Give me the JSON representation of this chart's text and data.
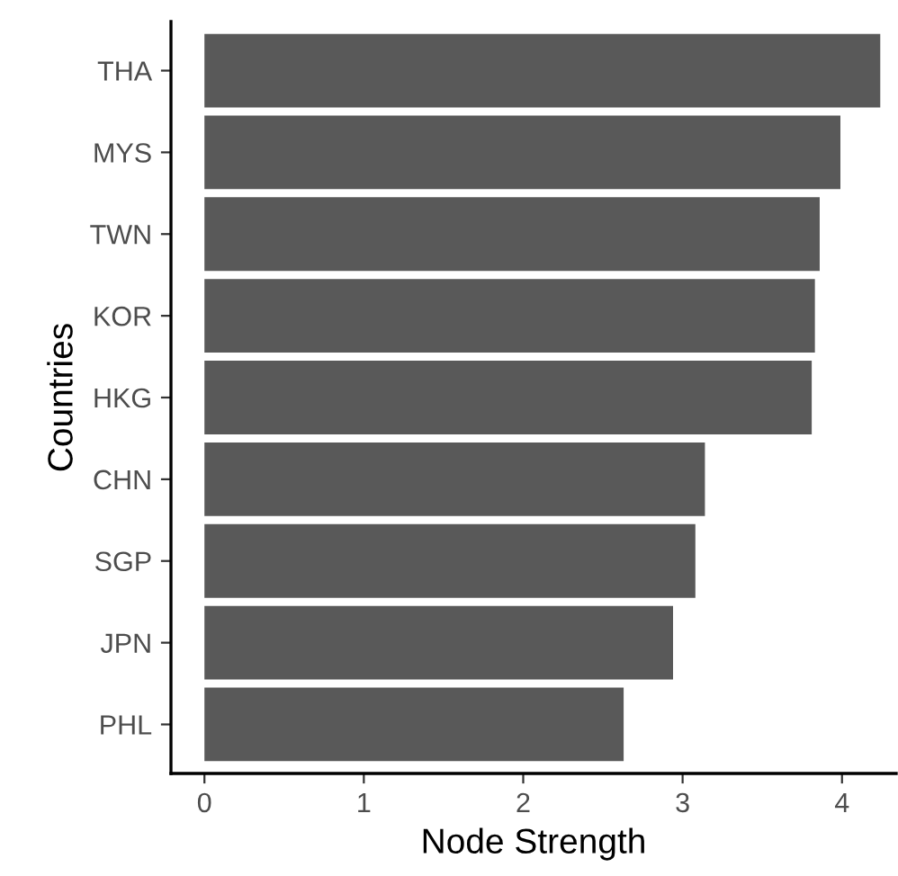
{
  "chart_data": {
    "type": "bar",
    "orientation": "horizontal",
    "xlabel": "Node Strength",
    "ylabel": "Countries",
    "categories": [
      "THA",
      "MYS",
      "TWN",
      "KOR",
      "HKG",
      "CHN",
      "SGP",
      "JPN",
      "PHL"
    ],
    "values": [
      4.24,
      3.99,
      3.86,
      3.83,
      3.81,
      3.14,
      3.08,
      2.94,
      2.63
    ],
    "color": "#595959",
    "xlim": [
      -0.21,
      4.34
    ],
    "xticks": [
      0,
      1,
      2,
      3,
      4
    ],
    "grid": false
  }
}
